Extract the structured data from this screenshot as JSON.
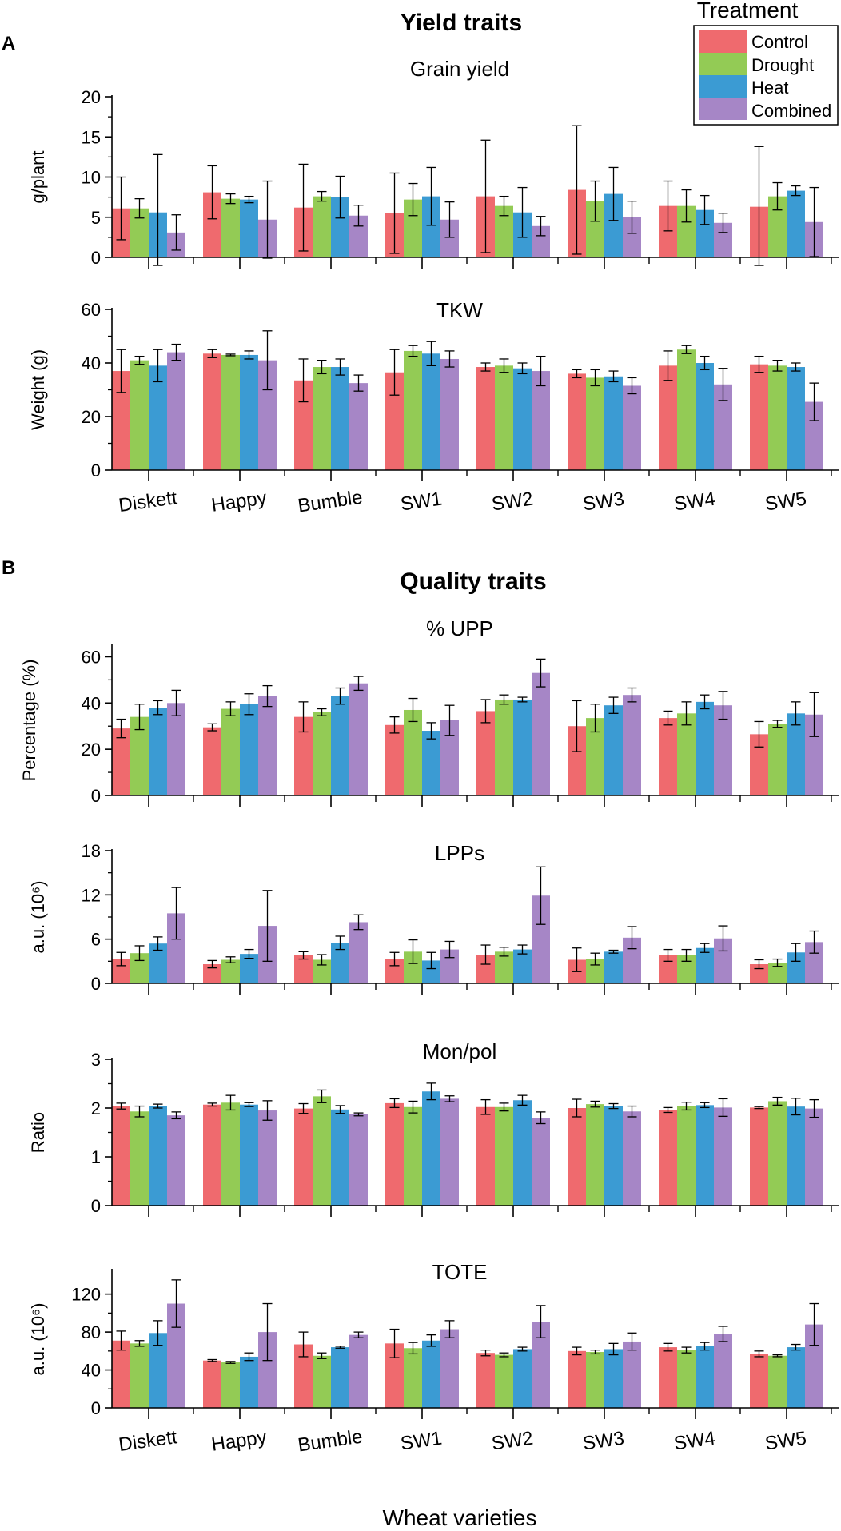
{
  "figure": {
    "section_a": {
      "label": "A",
      "title": "Yield traits"
    },
    "section_b": {
      "label": "B",
      "title": "Quality traits"
    },
    "x_title": "Wheat varieties",
    "legend": {
      "title": "Treatment",
      "entries": [
        "Control",
        "Drought",
        "Heat",
        "Combined"
      ],
      "colors": [
        "#ef6a6e",
        "#93cb55",
        "#3b9bd3",
        "#a686c6"
      ]
    }
  },
  "chart_data": [
    {
      "type": "bar",
      "title": "Grain yield",
      "ylabel": "g/plant",
      "ylim": [
        0,
        20
      ],
      "yticks": [
        0,
        5,
        10,
        15,
        20
      ],
      "categories": [
        "Diskett",
        "Happy",
        "Bumble",
        "SW1",
        "SW2",
        "SW3",
        "SW4",
        "SW5"
      ],
      "series": [
        {
          "name": "Control",
          "values": [
            6.1,
            8.1,
            6.2,
            5.5,
            7.6,
            8.4,
            6.4,
            6.3
          ],
          "errors": [
            3.9,
            3.3,
            5.4,
            5.0,
            7.0,
            8.0,
            3.1,
            7.5
          ]
        },
        {
          "name": "Drought",
          "values": [
            6.1,
            7.3,
            7.6,
            7.2,
            6.4,
            7.0,
            6.4,
            7.6
          ],
          "errors": [
            1.2,
            0.6,
            0.6,
            2.0,
            1.2,
            2.5,
            2.0,
            1.7
          ]
        },
        {
          "name": "Heat",
          "values": [
            5.6,
            7.2,
            7.5,
            7.6,
            5.6,
            7.9,
            5.9,
            8.3
          ],
          "errors": [
            7.2,
            0.4,
            2.6,
            3.6,
            3.1,
            3.3,
            1.8,
            0.6
          ]
        },
        {
          "name": "Combined",
          "values": [
            3.1,
            4.7,
            5.2,
            4.7,
            3.9,
            5.0,
            4.3,
            4.4
          ],
          "errors": [
            2.2,
            4.8,
            1.3,
            2.2,
            1.2,
            2.0,
            1.2,
            4.3
          ]
        }
      ]
    },
    {
      "type": "bar",
      "title": "TKW",
      "ylabel": "Weight (g)",
      "ylim": [
        0,
        60
      ],
      "yticks": [
        0,
        20,
        40,
        60
      ],
      "categories": [
        "Diskett",
        "Happy",
        "Bumble",
        "SW1",
        "SW2",
        "SW3",
        "SW4",
        "SW5"
      ],
      "series": [
        {
          "name": "Control",
          "values": [
            37,
            43.5,
            33.5,
            36.5,
            38.5,
            36,
            39,
            39.5
          ],
          "errors": [
            8,
            1.5,
            8,
            8.5,
            1.5,
            1.5,
            5.5,
            3
          ]
        },
        {
          "name": "Drought",
          "values": [
            41,
            43,
            38.5,
            44.5,
            39,
            34.5,
            45,
            39
          ],
          "errors": [
            1.5,
            0.3,
            2.5,
            2,
            2.5,
            3,
            1.5,
            2
          ]
        },
        {
          "name": "Heat",
          "values": [
            39,
            43,
            38.5,
            43.5,
            38,
            35,
            40,
            38.5
          ],
          "errors": [
            6,
            1.5,
            3,
            4.5,
            2,
            2,
            2.5,
            1.5
          ]
        },
        {
          "name": "Combined",
          "values": [
            44,
            41,
            32.5,
            41.5,
            37,
            31.5,
            32,
            25.5
          ],
          "errors": [
            3,
            11,
            3,
            3,
            5.5,
            3,
            6,
            7
          ]
        }
      ]
    },
    {
      "type": "bar",
      "title": "% UPP",
      "ylabel": "Percentage (%)",
      "ylim": [
        0,
        65
      ],
      "yticks": [
        0,
        20,
        40,
        60
      ],
      "categories": [
        "Diskett",
        "Happy",
        "Bumble",
        "SW1",
        "SW2",
        "SW3",
        "SW4",
        "SW5"
      ],
      "series": [
        {
          "name": "Control",
          "values": [
            29,
            29.5,
            34,
            30.5,
            36.5,
            30,
            33.5,
            26.5
          ],
          "errors": [
            4,
            1.5,
            6.5,
            3.5,
            5,
            11,
            3,
            5.5
          ]
        },
        {
          "name": "Drought",
          "values": [
            34,
            37.5,
            36,
            37,
            41.5,
            33.5,
            35.5,
            31
          ],
          "errors": [
            5.5,
            3,
            1.5,
            5,
            2,
            6,
            5,
            1.5
          ]
        },
        {
          "name": "Heat",
          "values": [
            38,
            39.5,
            43,
            28,
            41.5,
            39,
            40.5,
            35.5
          ],
          "errors": [
            3,
            4.5,
            3.5,
            3.5,
            1,
            3.5,
            3,
            5
          ]
        },
        {
          "name": "Combined",
          "values": [
            40,
            43,
            48.5,
            32.5,
            53,
            43.5,
            39,
            35
          ],
          "errors": [
            5.5,
            4.5,
            3,
            6.5,
            6,
            3,
            6,
            9.5
          ]
        }
      ]
    },
    {
      "type": "bar",
      "title": "LPPs",
      "ylabel": "a.u. (10⁶)",
      "ylim": [
        0,
        18
      ],
      "yticks": [
        0,
        6,
        12,
        18
      ],
      "categories": [
        "Diskett",
        "Happy",
        "Bumble",
        "SW1",
        "SW2",
        "SW3",
        "SW4",
        "SW5"
      ],
      "series": [
        {
          "name": "Control",
          "values": [
            3.3,
            2.6,
            3.8,
            3.3,
            3.9,
            3.2,
            3.8,
            2.6
          ],
          "errors": [
            0.9,
            0.5,
            0.5,
            0.9,
            1.3,
            1.6,
            0.8,
            0.6
          ]
        },
        {
          "name": "Drought",
          "values": [
            4.1,
            3.2,
            3.2,
            4.3,
            4.3,
            3.3,
            3.8,
            2.8
          ],
          "errors": [
            1.0,
            0.4,
            0.7,
            1.6,
            0.6,
            0.8,
            0.8,
            0.5
          ]
        },
        {
          "name": "Heat",
          "values": [
            5.4,
            4.0,
            5.5,
            3.1,
            4.6,
            4.3,
            4.8,
            4.2
          ],
          "errors": [
            0.9,
            0.6,
            0.9,
            1.1,
            0.6,
            0.2,
            0.6,
            1.2
          ]
        },
        {
          "name": "Combined",
          "values": [
            9.5,
            7.8,
            8.3,
            4.6,
            11.9,
            6.2,
            6.1,
            5.6
          ],
          "errors": [
            3.5,
            4.8,
            1.0,
            1.1,
            3.9,
            1.5,
            1.7,
            1.5
          ]
        }
      ]
    },
    {
      "type": "bar",
      "title": "Mon/pol",
      "ylabel": "Ratio",
      "ylim": [
        0,
        3
      ],
      "yticks": [
        0,
        1,
        2,
        3
      ],
      "categories": [
        "Diskett",
        "Happy",
        "Bumble",
        "SW1",
        "SW2",
        "SW3",
        "SW4",
        "SW5"
      ],
      "series": [
        {
          "name": "Control",
          "values": [
            2.04,
            2.07,
            1.99,
            2.1,
            2.02,
            2.0,
            1.96,
            2.01
          ],
          "errors": [
            0.06,
            0.03,
            0.1,
            0.09,
            0.15,
            0.18,
            0.05,
            0.02
          ]
        },
        {
          "name": "Drought",
          "values": [
            1.93,
            2.11,
            2.24,
            2.02,
            2.02,
            2.08,
            2.04,
            2.14
          ],
          "errors": [
            0.11,
            0.15,
            0.13,
            0.12,
            0.08,
            0.06,
            0.08,
            0.08
          ]
        },
        {
          "name": "Heat",
          "values": [
            2.04,
            2.07,
            1.97,
            2.34,
            2.16,
            2.04,
            2.06,
            2.03
          ],
          "errors": [
            0.04,
            0.04,
            0.08,
            0.17,
            0.1,
            0.05,
            0.05,
            0.17
          ]
        },
        {
          "name": "Combined",
          "values": [
            1.85,
            1.95,
            1.87,
            2.19,
            1.8,
            1.93,
            2.01,
            1.99
          ],
          "errors": [
            0.07,
            0.2,
            0.03,
            0.06,
            0.12,
            0.11,
            0.18,
            0.18
          ]
        }
      ]
    },
    {
      "type": "bar",
      "title": "TOTE",
      "ylabel": "a.u. (10⁶)",
      "ylim": [
        0,
        145
      ],
      "yticks": [
        0,
        40,
        80,
        120
      ],
      "categories": [
        "Diskett",
        "Happy",
        "Bumble",
        "SW1",
        "SW2",
        "SW3",
        "SW4",
        "SW5"
      ],
      "series": [
        {
          "name": "Control",
          "values": [
            71,
            50,
            67,
            68,
            58,
            60,
            64,
            57
          ],
          "errors": [
            10,
            1,
            13,
            15,
            3,
            4,
            4,
            3
          ]
        },
        {
          "name": "Drought",
          "values": [
            68,
            48,
            55,
            63,
            56,
            59,
            61,
            55
          ],
          "errors": [
            3,
            1,
            3,
            6,
            2,
            2,
            3,
            1
          ]
        },
        {
          "name": "Heat",
          "values": [
            79,
            54,
            64,
            71,
            62,
            62,
            65,
            64
          ],
          "errors": [
            13,
            4,
            1,
            6,
            2,
            6,
            4,
            3
          ]
        },
        {
          "name": "Combined",
          "values": [
            110,
            80,
            77,
            83,
            91,
            70,
            78,
            88
          ],
          "errors": [
            25,
            30,
            3,
            9,
            17,
            9,
            8,
            22
          ]
        }
      ]
    }
  ]
}
